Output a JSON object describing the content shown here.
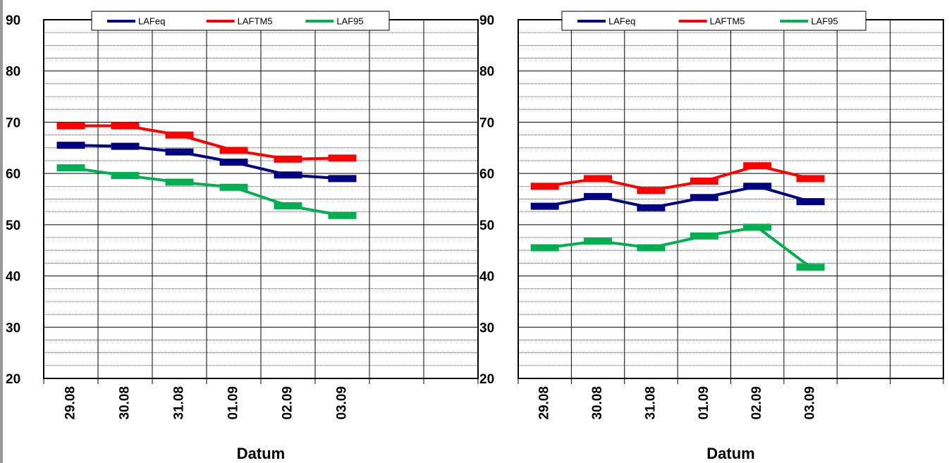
{
  "chart_data": [
    {
      "type": "line",
      "x_label": "Datum",
      "categories": [
        "29.08",
        "30.08",
        "31.08",
        "01.09",
        "02.09",
        "03.09",
        null,
        null
      ],
      "series": [
        {
          "name": "LAFeq",
          "color": "#000080",
          "values": [
            65.5,
            65.3,
            64.2,
            62.2,
            59.7,
            59.0,
            null,
            null
          ]
        },
        {
          "name": "LAFTM5",
          "color": "#ff0000",
          "values": [
            69.3,
            69.3,
            67.5,
            64.5,
            62.8,
            63.0,
            null,
            null
          ]
        },
        {
          "name": "LAF95",
          "color": "#00b050",
          "values": [
            61.1,
            59.6,
            58.3,
            57.3,
            53.7,
            51.8,
            null,
            null
          ]
        }
      ],
      "ylim": [
        20,
        90
      ],
      "yticks": [
        20,
        30,
        40,
        50,
        60,
        70,
        80,
        90
      ],
      "grid": true,
      "minor_grid": true,
      "legend": "top"
    },
    {
      "type": "line",
      "x_label": "Datum",
      "categories": [
        "29.08",
        "30.08",
        "31.08",
        "01.09",
        "02.09",
        "03.09",
        null,
        null
      ],
      "series": [
        {
          "name": "LAFeq",
          "color": "#000080",
          "values": [
            53.6,
            55.5,
            53.3,
            55.3,
            57.5,
            54.5,
            null,
            null
          ]
        },
        {
          "name": "LAFTM5",
          "color": "#ff0000",
          "values": [
            57.5,
            59.0,
            56.7,
            58.5,
            61.5,
            59.0,
            null,
            null
          ]
        },
        {
          "name": "LAF95",
          "color": "#00b050",
          "values": [
            45.5,
            46.8,
            45.5,
            47.8,
            49.5,
            41.7,
            null,
            null
          ]
        }
      ],
      "ylim": [
        20,
        90
      ],
      "yticks": [
        20,
        30,
        40,
        50,
        60,
        70,
        80,
        90
      ],
      "grid": true,
      "minor_grid": true,
      "legend": "top"
    }
  ]
}
